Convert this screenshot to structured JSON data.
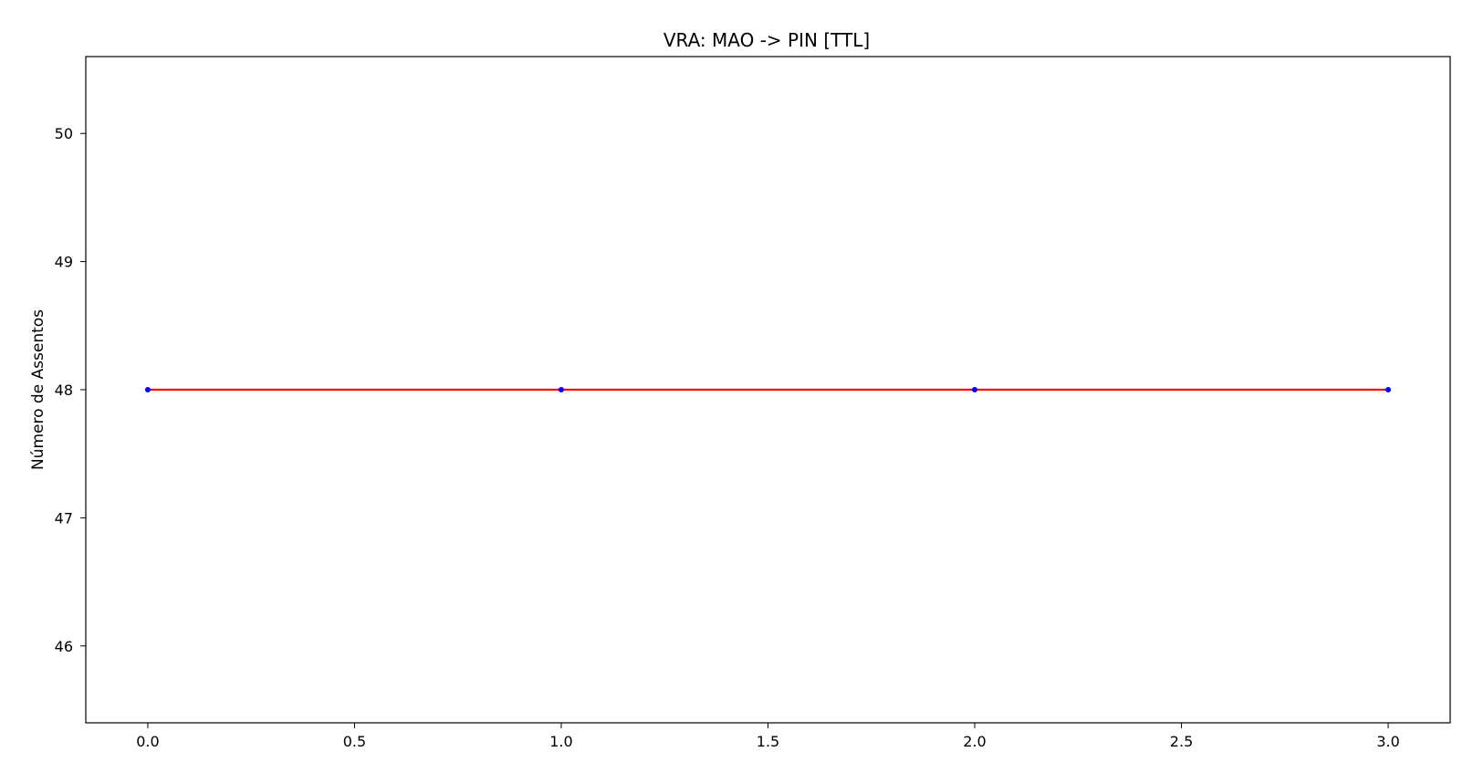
{
  "chart_data": {
    "type": "line",
    "title": "VRA: MAO -> PIN [TTL]",
    "xlabel": "",
    "ylabel": "Número de Assentos",
    "x": [
      0,
      1,
      2,
      3
    ],
    "series": [
      {
        "values": [
          48,
          48,
          48,
          48
        ],
        "line_color": "#ff0000",
        "marker_color": "#0000ff"
      }
    ],
    "xlim": [
      -0.15,
      3.15
    ],
    "ylim": [
      45.4,
      50.6
    ],
    "xticks": [
      0.0,
      0.5,
      1.0,
      1.5,
      2.0,
      2.5,
      3.0
    ],
    "xtick_labels": [
      "0.0",
      "0.5",
      "1.0",
      "1.5",
      "2.0",
      "2.5",
      "3.0"
    ],
    "yticks": [
      46,
      47,
      48,
      49,
      50
    ],
    "ytick_labels": [
      "46",
      "47",
      "48",
      "49",
      "50"
    ],
    "grid": false,
    "legend": "none"
  }
}
